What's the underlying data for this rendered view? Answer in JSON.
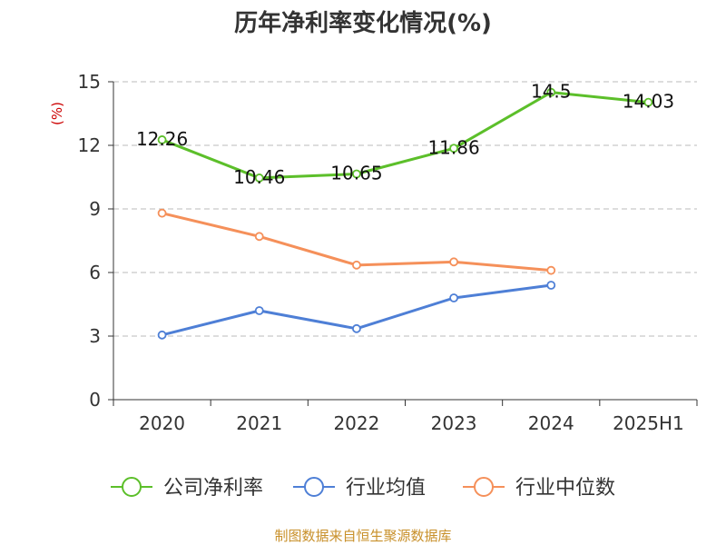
{
  "chart_data": {
    "type": "line",
    "title": "历年净利率变化情况(%)",
    "unit_label": "(%)",
    "categories": [
      "2020",
      "2021",
      "2022",
      "2023",
      "2024",
      "2025H1"
    ],
    "ylim": [
      0,
      15
    ],
    "yticks": [
      0,
      3,
      6,
      9,
      12,
      15
    ],
    "grid": true,
    "legend_position": "bottom",
    "series": [
      {
        "name": "公司净利率",
        "color": "#5cbf2a",
        "values": [
          12.26,
          10.46,
          10.65,
          11.86,
          14.5,
          14.03
        ],
        "labels": [
          "12.26",
          "10.46",
          "10.65",
          "11.86",
          "14.5",
          "14.03"
        ]
      },
      {
        "name": "行业均值",
        "color": "#4e7fd6",
        "values": [
          3.05,
          4.2,
          3.35,
          4.8,
          5.4,
          null
        ]
      },
      {
        "name": "行业中位数",
        "color": "#f5905a",
        "values": [
          8.8,
          7.7,
          6.35,
          6.5,
          6.1,
          null
        ]
      }
    ]
  },
  "source_text": "制图数据来自恒生聚源数据库"
}
